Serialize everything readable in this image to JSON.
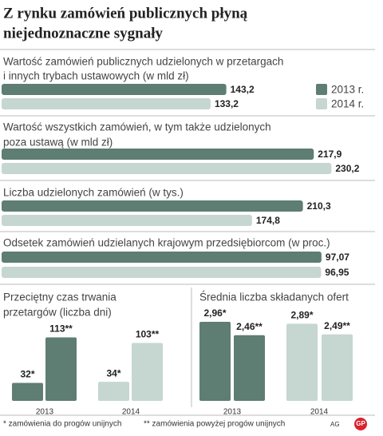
{
  "title": [
    "Z rynku zamówień publicznych płyną",
    "niejednoznaczne sygnały"
  ],
  "chart_data": [
    {
      "type": "hbar",
      "title": [
        "Wartość zamówień publicznych udzielonych w przetargach",
        "i innych trybach ustawowych (w mld zł)"
      ],
      "series": [
        {
          "name": "2013 r.",
          "color": "#5e7d73",
          "values": [
            143.2
          ],
          "value_labels": [
            "143,2"
          ]
        },
        {
          "name": "2014 r.",
          "color": "#c6d6d0",
          "values": [
            133.2
          ],
          "value_labels": [
            "133,2"
          ]
        }
      ],
      "xlim": [
        0,
        210
      ]
    },
    {
      "type": "hbar",
      "title": [
        "Wartość wszystkich zamówień, w tym także udzielonych",
        "poza ustawą (w mld zł)"
      ],
      "series": [
        {
          "color": "#5e7d73",
          "values": [
            217.9
          ],
          "value_labels": [
            "217,9"
          ]
        },
        {
          "color": "#c6d6d0",
          "values": [
            230.2
          ],
          "value_labels": [
            "230,2"
          ]
        }
      ],
      "xlim": [
        0,
        230
      ]
    },
    {
      "type": "hbar",
      "title": [
        "Liczba udzielonych zamówień (w tys.)"
      ],
      "series": [
        {
          "color": "#5e7d73",
          "values": [
            210.3
          ],
          "value_labels": [
            "210,3"
          ]
        },
        {
          "color": "#c6d6d0",
          "values": [
            174.8
          ],
          "value_labels": [
            "174,8"
          ]
        }
      ],
      "xlim": [
        0,
        230
      ]
    },
    {
      "type": "hbar",
      "title": [
        "Odsetek zamówień udzielanych krajowym przedsiębiorcom (w proc.)"
      ],
      "series": [
        {
          "color": "#5e7d73",
          "values": [
            97.07
          ],
          "value_labels": [
            "97,07"
          ]
        },
        {
          "color": "#c6d6d0",
          "values": [
            96.95
          ],
          "value_labels": [
            "96,95"
          ]
        }
      ],
      "xlim": [
        0,
        100
      ]
    },
    {
      "type": "vbar",
      "title": [
        "Przeciętny czas trwania",
        "przetargów (liczba dni)"
      ],
      "categories": [
        "2013",
        "2014"
      ],
      "colors": [
        "#5e7d73",
        "#c6d6d0"
      ],
      "series": [
        {
          "values": [
            32,
            34
          ],
          "value_labels": [
            "32*",
            "34*"
          ]
        },
        {
          "values": [
            113,
            103
          ],
          "value_labels": [
            "113**",
            "103**"
          ]
        }
      ],
      "ylim": [
        0,
        145
      ]
    },
    {
      "type": "vbar",
      "title": [
        "Średnia liczba składanych ofert"
      ],
      "categories": [
        "2013",
        "2014"
      ],
      "colors": [
        "#5e7d73",
        "#c6d6d0"
      ],
      "series": [
        {
          "values": [
            2.96,
            2.89
          ],
          "value_labels": [
            "2,96*",
            "2,89*"
          ]
        },
        {
          "values": [
            2.46,
            2.49
          ],
          "value_labels": [
            "2,46**",
            "2,49**"
          ]
        }
      ],
      "ylim": [
        0,
        3.2
      ]
    }
  ],
  "footnotes": [
    "* zamówienia do progów unijnych",
    "** zamówienia powyżej progów unijnych"
  ],
  "credit": "AG",
  "logo": "GP"
}
